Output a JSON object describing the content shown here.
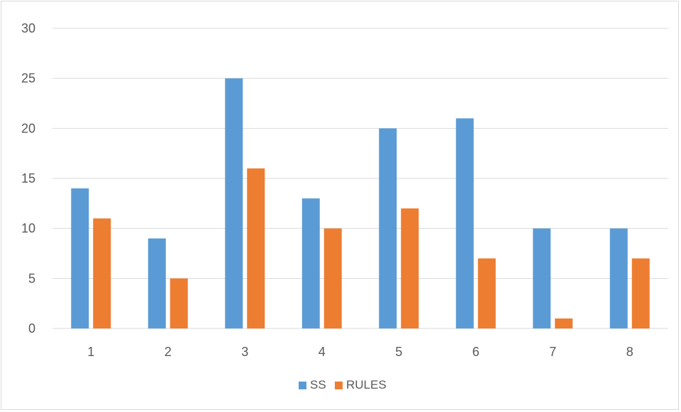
{
  "chart_data": {
    "type": "bar",
    "categories": [
      "1",
      "2",
      "3",
      "4",
      "5",
      "6",
      "7",
      "8"
    ],
    "series": [
      {
        "name": "SS",
        "color": "#5b9bd5",
        "values": [
          14,
          9,
          25,
          13,
          20,
          21,
          10,
          10
        ]
      },
      {
        "name": "RULES",
        "color": "#ed7d31",
        "values": [
          11,
          5,
          16,
          10,
          12,
          7,
          1,
          7
        ]
      }
    ],
    "ylim": [
      0,
      30
    ],
    "yticks": [
      0,
      5,
      10,
      15,
      20,
      25,
      30
    ],
    "grid": true,
    "legend": "bottom"
  }
}
